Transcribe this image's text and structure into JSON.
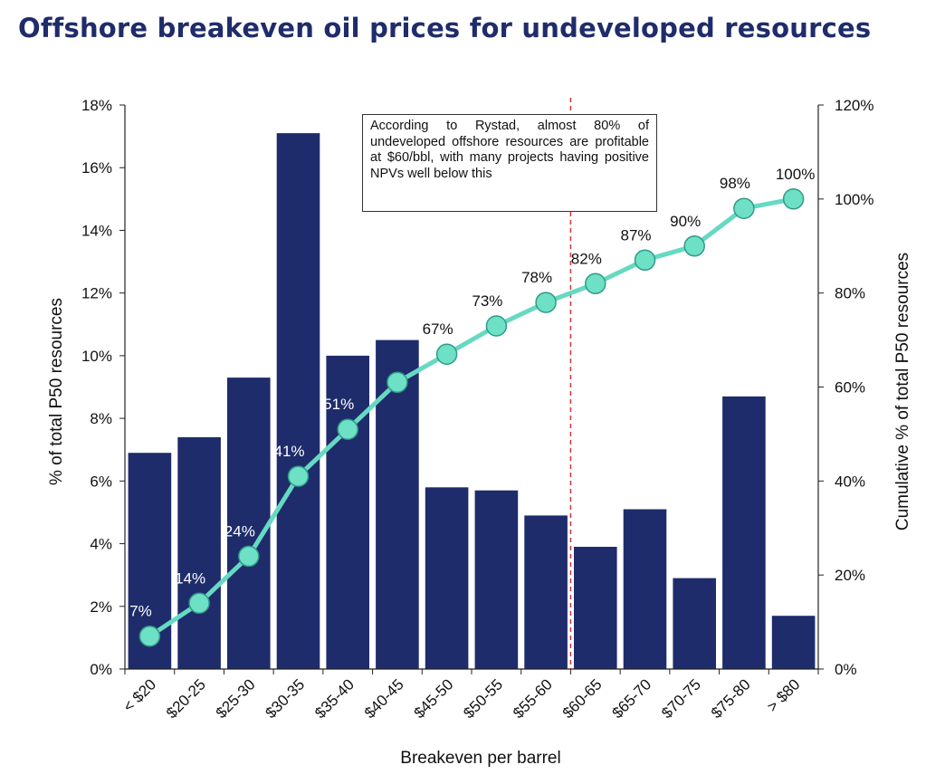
{
  "title": "Offshore breakeven oil prices for undeveloped resources",
  "note": "According to Rystad, almost 80% of undeveloped offshore resources are profitable at $60/bbl, with many projects having positive NPVs well below this",
  "colors": {
    "title": "#1f2c6b",
    "bar": "#1f2c6b",
    "line": "#66d9c2",
    "marker_fill": "#6ee0c6",
    "marker_stroke": "#2f9b86",
    "reference_line": "#d9333a"
  },
  "chart_data": {
    "type": "bar",
    "title": "Offshore breakeven oil prices for undeveloped resources",
    "xlabel": "Breakeven per barrel",
    "ylabel": "% of total P50 resources",
    "y2label": "Cumulative % of total P50 resources",
    "categories": [
      "< $20",
      "$20-25",
      "$25-30",
      "$30-35",
      "$35-40",
      "$40-45",
      "$45-50",
      "$50-55",
      "$55-60",
      "$60-65",
      "$65-70",
      "$70-75",
      "$75-80",
      "> $80"
    ],
    "ylim": [
      0,
      18
    ],
    "y2lim": [
      0,
      120
    ],
    "yticks": [
      "0%",
      "2%",
      "4%",
      "6%",
      "8%",
      "10%",
      "12%",
      "14%",
      "16%",
      "18%"
    ],
    "y2ticks": [
      "0%",
      "20%",
      "40%",
      "60%",
      "80%",
      "100%",
      "120%"
    ],
    "grid": false,
    "series": [
      {
        "type": "bar",
        "axis": "left",
        "values": [
          6.9,
          7.4,
          9.3,
          17.1,
          10.0,
          10.5,
          5.8,
          5.7,
          4.9,
          3.9,
          5.1,
          2.9,
          8.7,
          1.7
        ]
      },
      {
        "type": "line",
        "axis": "right",
        "values": [
          7,
          14,
          24,
          41,
          51,
          61,
          67,
          73,
          78,
          82,
          87,
          90,
          98,
          100
        ],
        "labels": [
          "7%",
          "14%",
          "24%",
          "41%",
          "51%",
          "",
          "67%",
          "73%",
          "78%",
          "82%",
          "87%",
          "90%",
          "98%",
          "100%"
        ]
      }
    ],
    "reference_line": {
      "x_between": [
        "$55-60",
        "$60-65"
      ],
      "style": "dashed"
    }
  }
}
